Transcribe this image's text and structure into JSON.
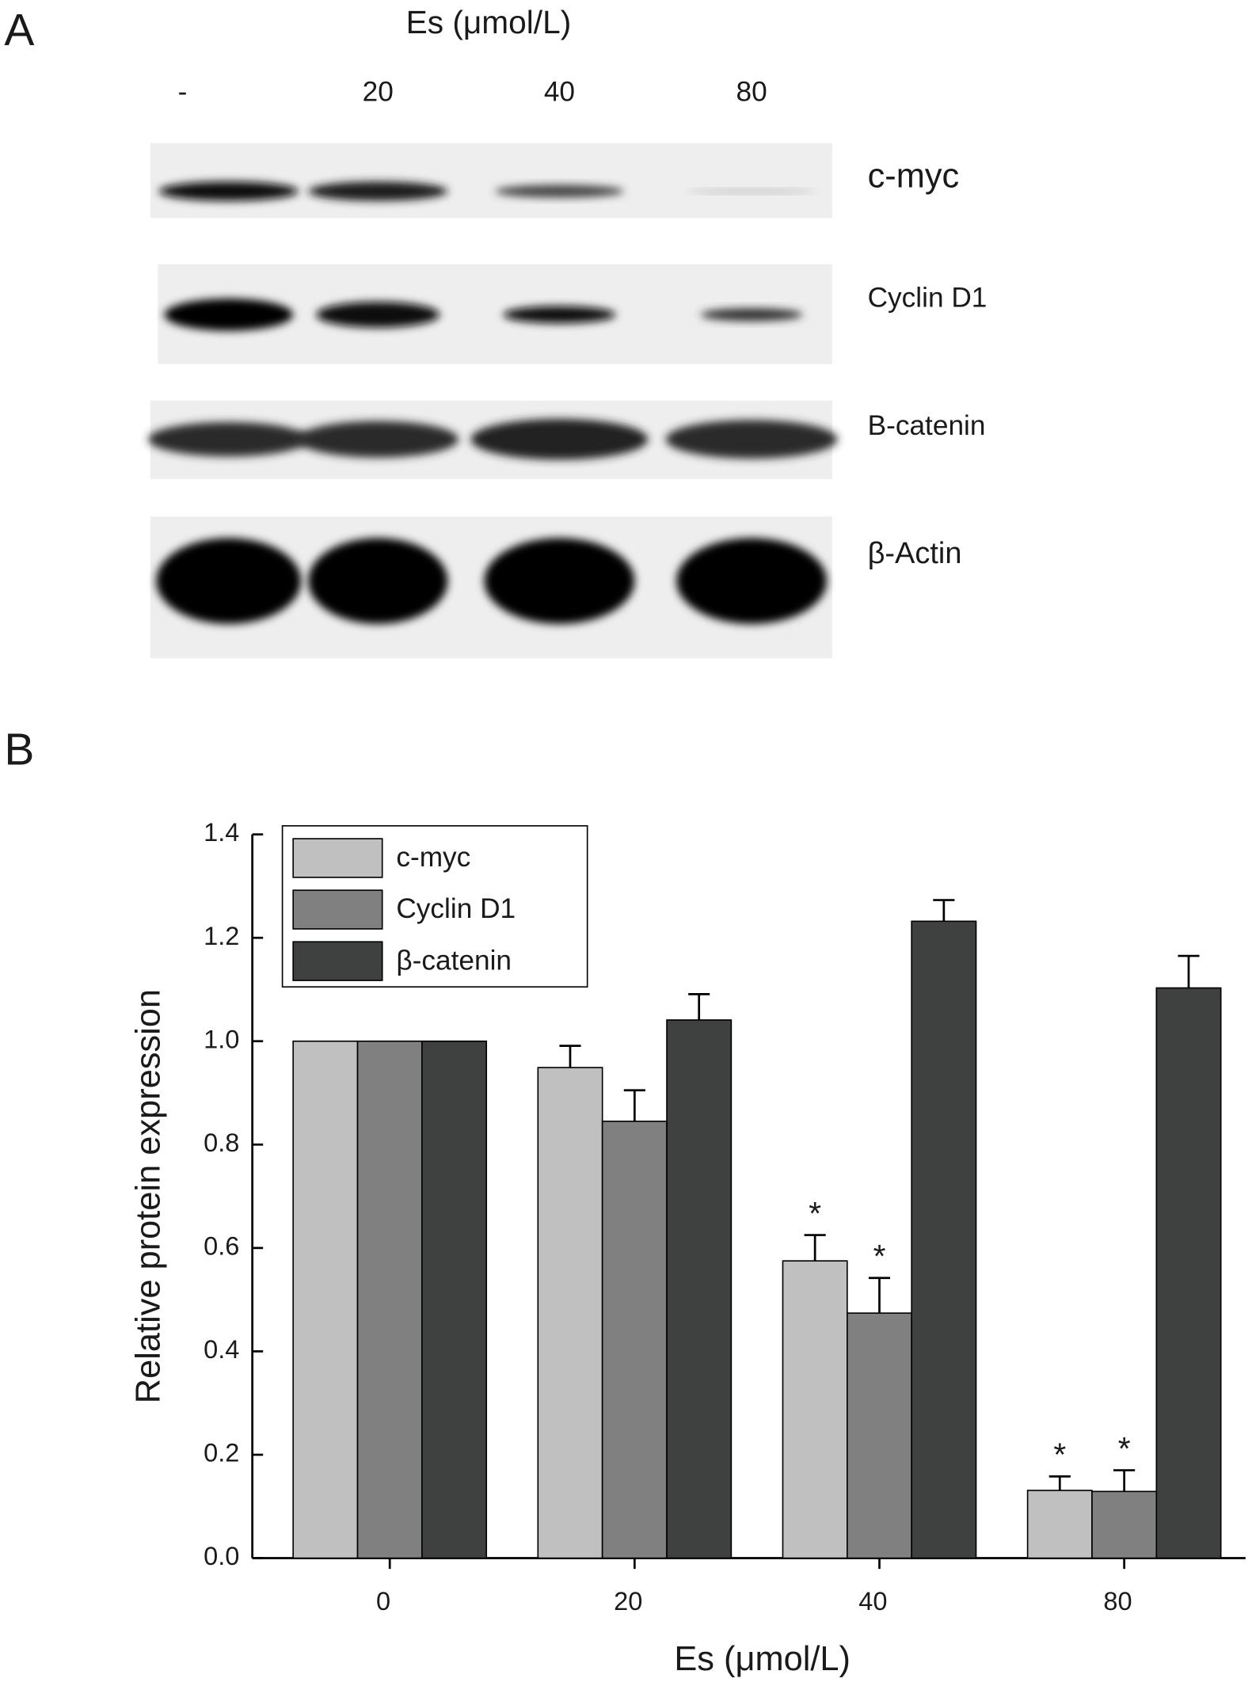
{
  "panel_a": {
    "label": "A",
    "header": "Es (μmol/L)",
    "lanes": [
      "-",
      "20",
      "40",
      "80"
    ],
    "bands": [
      "c-myc",
      "Cyclin D1",
      "B-catenin",
      "β-Actin"
    ]
  },
  "chart_data": {
    "type": "bar",
    "panel_label": "B",
    "xlabel": "Es (μmol/L)",
    "ylabel": "Relative protein expression",
    "categories": [
      "0",
      "20",
      "40",
      "80"
    ],
    "series": [
      {
        "name": "c-myc",
        "color": "#c0c0c0",
        "values": [
          1.0,
          0.949,
          0.575,
          0.131
        ],
        "errors": [
          0,
          0.042,
          0.05,
          0.027
        ],
        "markers": [
          null,
          null,
          "*",
          "*"
        ]
      },
      {
        "name": "Cyclin D1",
        "color": "#808080",
        "values": [
          1.0,
          0.845,
          0.474,
          0.129
        ],
        "errors": [
          0,
          0.06,
          0.068,
          0.041
        ],
        "markers": [
          null,
          null,
          "*",
          "*"
        ]
      },
      {
        "name": "β-catenin",
        "color": "#3f4040",
        "values": [
          1.0,
          1.041,
          1.232,
          1.103
        ],
        "errors": [
          0,
          0.05,
          0.041,
          0.062
        ]
      }
    ],
    "ylim": [
      0,
      1.4
    ],
    "yticks": [
      {
        "value": 0,
        "label": "0.0"
      },
      {
        "value": 0.2,
        "label": "0.2"
      },
      {
        "value": 0.4,
        "label": "0.4"
      },
      {
        "value": 0.6,
        "label": "0.6"
      },
      {
        "value": 0.8,
        "label": "0.8"
      },
      {
        "value": 1,
        "label": "1.0"
      },
      {
        "value": 1.2,
        "label": "1.2"
      },
      {
        "value": 1.4,
        "label": "1.4"
      }
    ]
  }
}
